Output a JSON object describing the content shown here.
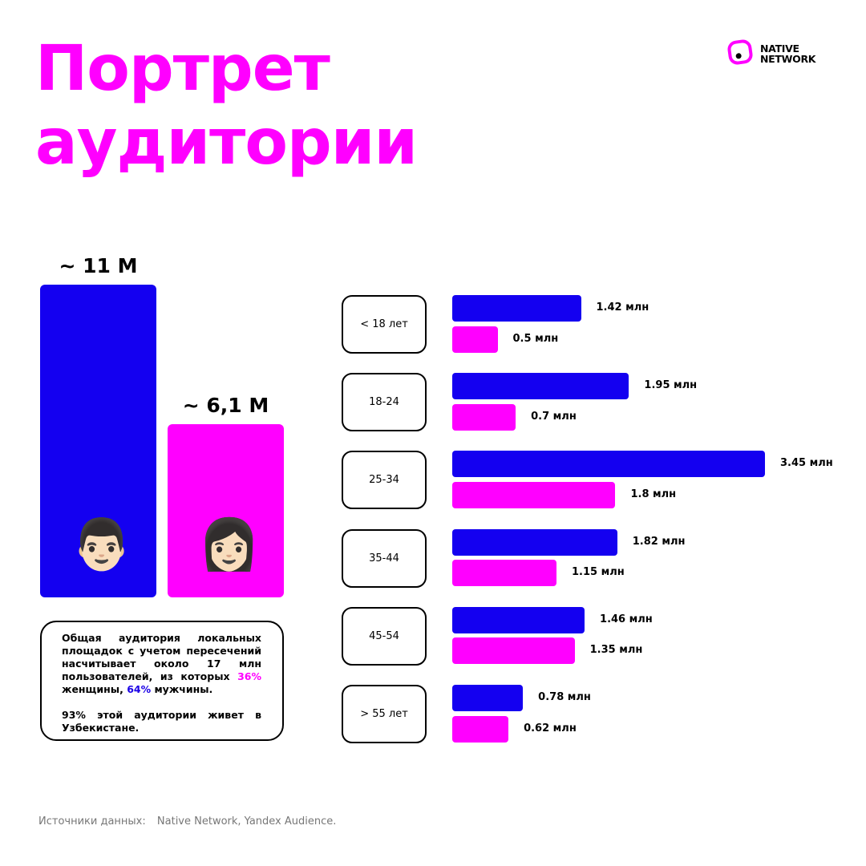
{
  "header": {
    "title_line1": "Портрет",
    "title_line2": "аудитории",
    "logo_line1": "NATIVE",
    "logo_line2": "NETWORK"
  },
  "colors": {
    "men": "#1400f0",
    "women": "#ff00ff",
    "title": "#ff00ff"
  },
  "gender": [
    {
      "label": "~ 11 M",
      "value": 11.0,
      "icon": "man-emoji-icon",
      "emoji": "👨🏻"
    },
    {
      "label": "~ 6,1 M",
      "value": 6.1,
      "icon": "woman-emoji-icon",
      "emoji": "👩🏻"
    }
  ],
  "note": {
    "p1_part1": "Общая аудитория локальных площадок с учетом пересечений насчитывает около 17 млн пользователей, из которых",
    "women_pct": "36%",
    "p1_part2": "женщины,",
    "men_pct": "64%",
    "p1_part3": "мужчины.",
    "p2_pct": "93%",
    "p2_text": "этой аудитории живет в Узбекистане."
  },
  "chart_data": {
    "type": "bar",
    "orientation": "horizontal",
    "categories": [
      "< 18 лет",
      "18-24",
      "25-34",
      "35-44",
      "45-54",
      "> 55 лет"
    ],
    "series": [
      {
        "name": "Мужчины",
        "values": [
          1.42,
          1.95,
          3.45,
          1.82,
          1.46,
          0.78
        ],
        "labels": [
          "1.42 млн",
          "1.95 млн",
          "3.45 млн",
          "1.82 млн",
          "1.46 млн",
          "0.78 млн"
        ]
      },
      {
        "name": "Женщины",
        "values": [
          0.5,
          0.7,
          1.8,
          1.15,
          1.35,
          0.62
        ],
        "labels": [
          "0.5 млн",
          "0.7 млн",
          "1.8 млн",
          "1.15 млн",
          "1.35 млн",
          "0.62 млн"
        ]
      }
    ],
    "unit": "млн",
    "xlim": [
      0,
      3.45
    ]
  },
  "footer": {
    "sources_label": "Источники данных:",
    "sources_text": "Native Network, Yandex Audience."
  }
}
